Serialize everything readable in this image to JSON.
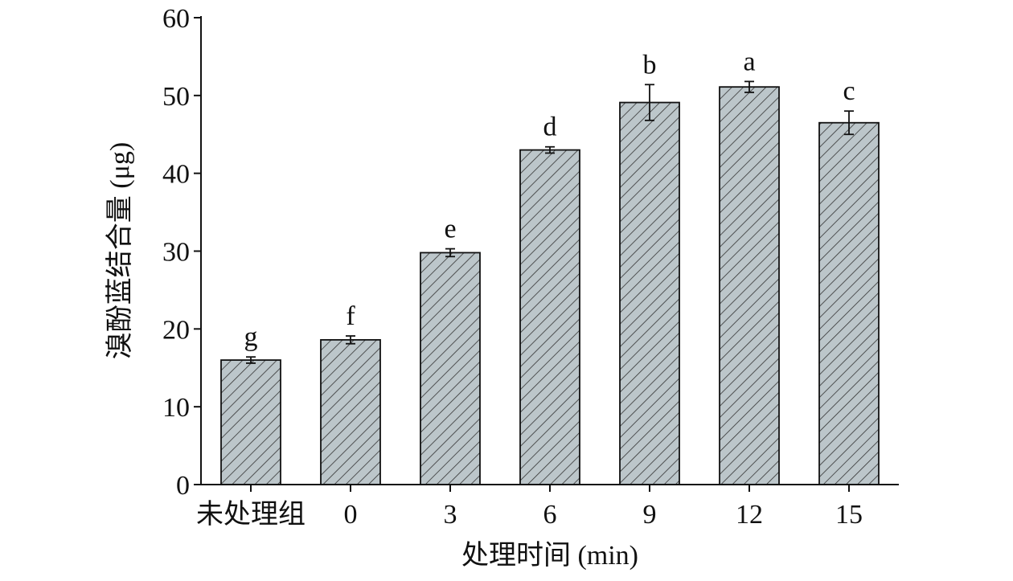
{
  "chart_data": {
    "type": "bar",
    "x_label": "处理时间 (min)",
    "y_label": "溴酚蓝结合量 (μg)",
    "categories": [
      "未处理组",
      "0",
      "3",
      "6",
      "9",
      "12",
      "15"
    ],
    "values": [
      16.0,
      18.6,
      29.8,
      43.0,
      49.1,
      51.1,
      46.5
    ],
    "errors": [
      0.4,
      0.5,
      0.5,
      0.4,
      2.3,
      0.7,
      1.5
    ],
    "labels": [
      "g",
      "f",
      "e",
      "d",
      "b",
      "a",
      "c"
    ],
    "color": "#bcc6ca",
    "ylim": [
      0,
      60
    ],
    "yticks": [
      0,
      10,
      20,
      30,
      40,
      50,
      60
    ]
  }
}
